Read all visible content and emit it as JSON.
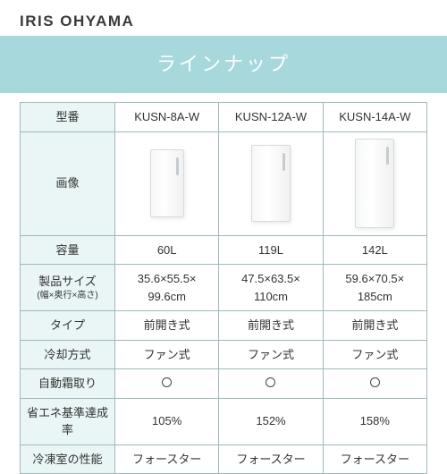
{
  "brand": "IRIS OHYAMA",
  "title": "ラインナップ",
  "colors": {
    "band_bg": "#a6d8dc",
    "table_border": "#9fb8bb",
    "th_bg": "#eaf5f6",
    "text": "#333333"
  },
  "row_labels": {
    "model": "型番",
    "image": "画像",
    "capacity": "容量",
    "size": "製品サイズ",
    "size_sub": "(幅×奥行×高さ)",
    "type": "タイプ",
    "cooling": "冷却方式",
    "defrost": "自動霜取り",
    "energy": "省エネ基準達成率",
    "freezer_perf": "冷凍室の性能"
  },
  "products": [
    {
      "model": "KUSN-8A-W",
      "image_size": "small",
      "capacity": "60L",
      "size": "35.6×55.5×\n99.6cm",
      "type": "前開き式",
      "cooling": "ファン式",
      "defrost": "○",
      "energy": "105%",
      "freezer_perf": "フォースター"
    },
    {
      "model": "KUSN-12A-W",
      "image_size": "medium",
      "capacity": "119L",
      "size": "47.5×63.5×\n110cm",
      "type": "前開き式",
      "cooling": "ファン式",
      "defrost": "○",
      "energy": "152%",
      "freezer_perf": "フォースター"
    },
    {
      "model": "KUSN-14A-W",
      "image_size": "large",
      "capacity": "142L",
      "size": "59.6×70.5×\n185cm",
      "type": "前開き式",
      "cooling": "ファン式",
      "defrost": "○",
      "energy": "158%",
      "freezer_perf": "フォースター"
    }
  ]
}
